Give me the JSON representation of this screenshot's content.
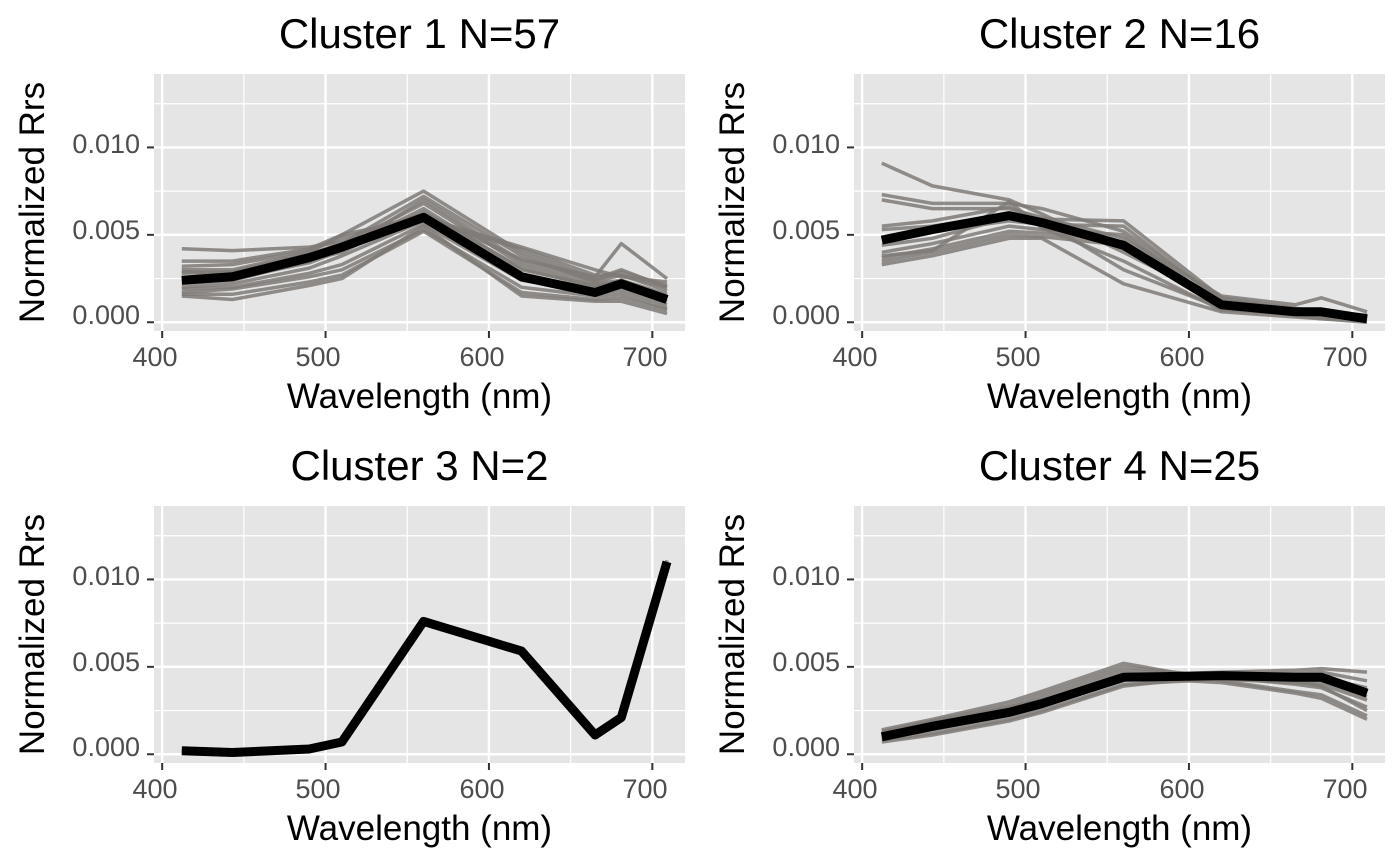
{
  "colors": {
    "panel_background": "#e5e5e5",
    "grid_major": "#ffffff",
    "member_line": "#7f7a77",
    "mean_line": "#000000",
    "tick_label": "#4d4d4d"
  },
  "chart_data": [
    {
      "type": "line",
      "title": "Cluster 1 N=57",
      "xlabel": "Wavelength (nm)",
      "ylabel": "Normalized Rrs",
      "xlim": [
        395,
        720
      ],
      "ylim": [
        -0.0005,
        0.0142
      ],
      "xticks": [
        400,
        500,
        600,
        700
      ],
      "xtick_labels": [
        "400",
        "500",
        "600",
        "700"
      ],
      "yticks": [
        0.0,
        0.005,
        0.01
      ],
      "ytick_labels": [
        "0.000",
        "0.005",
        "0.010"
      ],
      "grid": true,
      "x": [
        412,
        443,
        490,
        510,
        560,
        620,
        665,
        681,
        709
      ],
      "series": [
        {
          "role": "member",
          "values": [
            0.0042,
            0.0041,
            0.0043,
            0.0046,
            0.0058,
            0.0042,
            0.0027,
            0.0027,
            0.002
          ]
        },
        {
          "role": "member",
          "values": [
            0.0035,
            0.0035,
            0.0042,
            0.005,
            0.006,
            0.0043,
            0.003,
            0.0026,
            0.0023
          ]
        },
        {
          "role": "member",
          "values": [
            0.0032,
            0.0033,
            0.0041,
            0.0048,
            0.0062,
            0.0036,
            0.0026,
            0.0045,
            0.0025
          ]
        },
        {
          "role": "member",
          "values": [
            0.003,
            0.003,
            0.004,
            0.005,
            0.0075,
            0.004,
            0.0025,
            0.003,
            0.002
          ]
        },
        {
          "role": "member",
          "values": [
            0.0028,
            0.0029,
            0.0039,
            0.0045,
            0.0072,
            0.0038,
            0.0023,
            0.0027,
            0.0018
          ]
        },
        {
          "role": "member",
          "values": [
            0.0025,
            0.0026,
            0.0037,
            0.0044,
            0.0068,
            0.0033,
            0.0022,
            0.0024,
            0.0016
          ]
        },
        {
          "role": "member",
          "values": [
            0.0022,
            0.0024,
            0.0035,
            0.0042,
            0.0065,
            0.003,
            0.0021,
            0.0023,
            0.0014
          ]
        },
        {
          "role": "member",
          "values": [
            0.002,
            0.0022,
            0.0031,
            0.0038,
            0.0058,
            0.0027,
            0.0018,
            0.002,
            0.0012
          ]
        },
        {
          "role": "member",
          "values": [
            0.0019,
            0.002,
            0.0028,
            0.0033,
            0.0056,
            0.0024,
            0.0017,
            0.0018,
            0.001
          ]
        },
        {
          "role": "member",
          "values": [
            0.0017,
            0.0019,
            0.0026,
            0.003,
            0.0053,
            0.002,
            0.0015,
            0.0016,
            0.0008
          ]
        },
        {
          "role": "member",
          "values": [
            0.0016,
            0.0016,
            0.0023,
            0.0027,
            0.0052,
            0.0017,
            0.0013,
            0.0014,
            0.0007
          ]
        },
        {
          "role": "member",
          "values": [
            0.0015,
            0.0013,
            0.0021,
            0.0025,
            0.0055,
            0.0015,
            0.0012,
            0.0012,
            0.0005
          ]
        },
        {
          "role": "member",
          "values": [
            0.0029,
            0.0028,
            0.0036,
            0.004,
            0.0063,
            0.0031,
            0.002,
            0.0024,
            0.0015
          ]
        },
        {
          "role": "member",
          "values": [
            0.0024,
            0.0025,
            0.0034,
            0.0041,
            0.007,
            0.0035,
            0.0024,
            0.0029,
            0.0021
          ]
        },
        {
          "role": "mean",
          "name": "",
          "values": [
            0.0024,
            0.0026,
            0.0037,
            0.0043,
            0.006,
            0.0026,
            0.0017,
            0.0022,
            0.0013
          ]
        }
      ]
    },
    {
      "type": "line",
      "title": "Cluster 2 N=16",
      "xlabel": "Wavelength (nm)",
      "ylabel": "Normalized Rrs",
      "xlim": [
        395,
        720
      ],
      "ylim": [
        -0.0005,
        0.0142
      ],
      "xticks": [
        400,
        500,
        600,
        700
      ],
      "xtick_labels": [
        "400",
        "500",
        "600",
        "700"
      ],
      "yticks": [
        0.0,
        0.005,
        0.01
      ],
      "ytick_labels": [
        "0.000",
        "0.005",
        "0.010"
      ],
      "grid": true,
      "x": [
        412,
        443,
        490,
        510,
        560,
        620,
        665,
        681,
        709
      ],
      "series": [
        {
          "role": "member",
          "values": [
            0.0091,
            0.0078,
            0.007,
            0.0062,
            0.004,
            0.0012,
            0.0008,
            0.0006,
            0.0003
          ]
        },
        {
          "role": "member",
          "values": [
            0.0073,
            0.0068,
            0.0068,
            0.0065,
            0.0052,
            0.0013,
            0.0007,
            0.0005,
            0.0002
          ]
        },
        {
          "role": "member",
          "values": [
            0.007,
            0.0065,
            0.0065,
            0.006,
            0.0048,
            0.0015,
            0.001,
            0.0014,
            0.0006
          ]
        },
        {
          "role": "member",
          "values": [
            0.0055,
            0.0058,
            0.0066,
            0.0058,
            0.003,
            0.0008,
            0.0005,
            0.0004,
            0.0002
          ]
        },
        {
          "role": "member",
          "values": [
            0.0053,
            0.0055,
            0.0062,
            0.0057,
            0.0042,
            0.0011,
            0.0006,
            0.0005,
            0.0002
          ]
        },
        {
          "role": "member",
          "values": [
            0.0048,
            0.0052,
            0.0058,
            0.0056,
            0.0055,
            0.0012,
            0.0007,
            0.0006,
            0.0003
          ]
        },
        {
          "role": "member",
          "values": [
            0.0044,
            0.0048,
            0.006,
            0.0059,
            0.0058,
            0.0014,
            0.0008,
            0.0006,
            0.0004
          ]
        },
        {
          "role": "member",
          "values": [
            0.004,
            0.0045,
            0.0055,
            0.0053,
            0.005,
            0.001,
            0.0006,
            0.0004,
            0.0002
          ]
        },
        {
          "role": "member",
          "values": [
            0.0037,
            0.0042,
            0.0052,
            0.0051,
            0.0046,
            0.0009,
            0.0005,
            0.0003,
            0.0002
          ]
        },
        {
          "role": "member",
          "values": [
            0.0035,
            0.004,
            0.005,
            0.0049,
            0.0044,
            0.0008,
            0.0004,
            0.0002,
            0.0001
          ]
        },
        {
          "role": "member",
          "values": [
            0.0033,
            0.0038,
            0.0048,
            0.0048,
            0.0022,
            0.0006,
            0.0003,
            0.0002,
            0.0
          ]
        },
        {
          "role": "member",
          "values": [
            0.0038,
            0.0041,
            0.0069,
            0.0054,
            0.0035,
            0.0007,
            0.0005,
            0.0003,
            0.0004
          ]
        },
        {
          "role": "mean",
          "name": "",
          "values": [
            0.0047,
            0.0053,
            0.0061,
            0.0057,
            0.0044,
            0.001,
            0.0006,
            0.0006,
            0.0002
          ]
        }
      ]
    },
    {
      "type": "line",
      "title": "Cluster 3 N=2",
      "xlabel": "Wavelength (nm)",
      "ylabel": "Normalized Rrs",
      "xlim": [
        395,
        720
      ],
      "ylim": [
        -0.0005,
        0.0142
      ],
      "xticks": [
        400,
        500,
        600,
        700
      ],
      "xtick_labels": [
        "400",
        "500",
        "600",
        "700"
      ],
      "yticks": [
        0.0,
        0.005,
        0.01
      ],
      "ytick_labels": [
        "0.000",
        "0.005",
        "0.010"
      ],
      "grid": true,
      "x": [
        412,
        443,
        490,
        510,
        560,
        620,
        665,
        681,
        709
      ],
      "series": [
        {
          "role": "member",
          "values": [
            0.0002,
            0.0001,
            0.0003,
            0.0007,
            0.0075,
            0.0058,
            0.0012,
            0.0022,
            0.0111
          ]
        },
        {
          "role": "member",
          "values": [
            0.0002,
            0.0001,
            0.0003,
            0.0007,
            0.0076,
            0.006,
            0.0011,
            0.002,
            0.0108
          ]
        },
        {
          "role": "mean",
          "name": "",
          "values": [
            0.0002,
            0.0001,
            0.0003,
            0.0007,
            0.0076,
            0.0059,
            0.0011,
            0.0021,
            0.011
          ]
        }
      ]
    },
    {
      "type": "line",
      "title": "Cluster 4 N=25",
      "xlabel": "Wavelength (nm)",
      "ylabel": "Normalized Rrs",
      "xlim": [
        395,
        720
      ],
      "ylim": [
        -0.0005,
        0.0142
      ],
      "xticks": [
        400,
        500,
        600,
        700
      ],
      "xtick_labels": [
        "400",
        "500",
        "600",
        "700"
      ],
      "yticks": [
        0.0,
        0.005,
        0.01
      ],
      "ytick_labels": [
        "0.000",
        "0.005",
        "0.010"
      ],
      "grid": true,
      "x": [
        412,
        443,
        490,
        510,
        560,
        620,
        665,
        681,
        709
      ],
      "series": [
        {
          "role": "member",
          "values": [
            0.0014,
            0.002,
            0.003,
            0.0036,
            0.0052,
            0.0042,
            0.0036,
            0.0034,
            0.0022
          ]
        },
        {
          "role": "member",
          "values": [
            0.0013,
            0.0019,
            0.0028,
            0.0034,
            0.005,
            0.0044,
            0.004,
            0.0038,
            0.0027
          ]
        },
        {
          "role": "member",
          "values": [
            0.0012,
            0.0017,
            0.0026,
            0.0032,
            0.0048,
            0.0045,
            0.0043,
            0.0042,
            0.0033
          ]
        },
        {
          "role": "member",
          "values": [
            0.0011,
            0.0016,
            0.0025,
            0.003,
            0.0046,
            0.0046,
            0.0046,
            0.0047,
            0.0042
          ]
        },
        {
          "role": "member",
          "values": [
            0.001,
            0.0015,
            0.0024,
            0.0029,
            0.0045,
            0.0047,
            0.0048,
            0.0049,
            0.0047
          ]
        },
        {
          "role": "member",
          "values": [
            0.0009,
            0.0014,
            0.0022,
            0.0027,
            0.0043,
            0.0044,
            0.0044,
            0.0044,
            0.0038
          ]
        },
        {
          "role": "member",
          "values": [
            0.0008,
            0.0012,
            0.002,
            0.0025,
            0.004,
            0.0043,
            0.0041,
            0.004,
            0.0031
          ]
        },
        {
          "role": "member",
          "values": [
            0.0007,
            0.0011,
            0.0019,
            0.0024,
            0.0039,
            0.0045,
            0.0042,
            0.0039,
            0.0025
          ]
        },
        {
          "role": "member",
          "values": [
            0.0012,
            0.0018,
            0.0027,
            0.0031,
            0.0044,
            0.0041,
            0.0035,
            0.0032,
            0.002
          ]
        },
        {
          "role": "mean",
          "name": "",
          "values": [
            0.001,
            0.0016,
            0.0024,
            0.0029,
            0.0044,
            0.0045,
            0.0044,
            0.0044,
            0.0035
          ]
        }
      ]
    }
  ]
}
